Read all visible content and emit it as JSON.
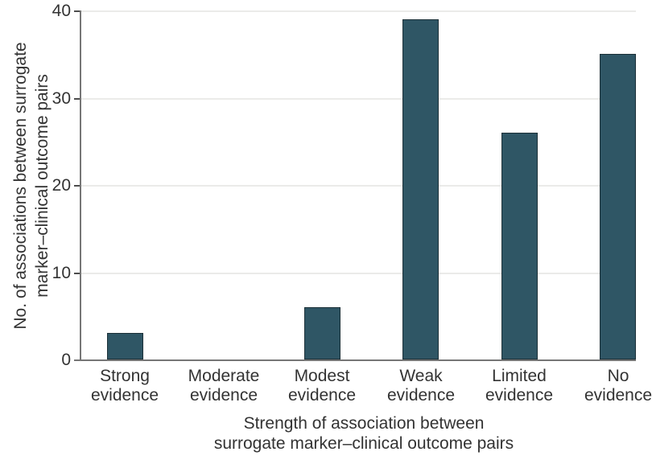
{
  "chart_data": {
    "type": "bar",
    "title": "",
    "categories": [
      "Strong evidence",
      "Moderate evidence",
      "Modest evidence",
      "Weak evidence",
      "Limited evidence",
      "No evidence"
    ],
    "values": [
      3,
      0,
      6,
      39,
      26,
      35
    ],
    "xlabel_lines": [
      "Strength of association between",
      "surrogate marker–clinical outcome pairs"
    ],
    "ylabel_lines": [
      "No. of associations between surrogate",
      "marker–clinical outcome pairs"
    ],
    "ylim": [
      0,
      40
    ],
    "yticks": [
      0,
      10,
      20,
      30,
      40
    ],
    "grid": "horizontal-gridlines-on",
    "legend": "none",
    "colors": {
      "bar_fill": "#2F5665",
      "bar_border": "#1C3038",
      "gridline": "#EBEBE9",
      "axis_line": "#767676",
      "tick_mark": "#4D4D4D",
      "text": "#333333",
      "background": "#FFFFFF"
    }
  }
}
